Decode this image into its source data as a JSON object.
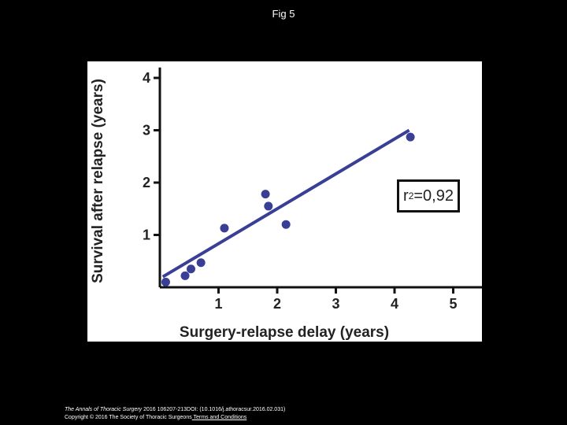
{
  "slide": {
    "title": "Fig 5"
  },
  "chart_data": {
    "type": "scatter",
    "xlabel": "Surgery-relapse delay (years)",
    "ylabel": "Survival after relapse (years)",
    "xlim": [
      0,
      5.5
    ],
    "ylim": [
      0,
      4.2
    ],
    "x_ticks": [
      "1",
      "2",
      "3",
      "4",
      "5"
    ],
    "y_ticks": [
      "1",
      "2",
      "3",
      "4"
    ],
    "points": [
      {
        "x": 0.1,
        "y": 0.1
      },
      {
        "x": 0.43,
        "y": 0.22
      },
      {
        "x": 0.53,
        "y": 0.35
      },
      {
        "x": 0.7,
        "y": 0.47
      },
      {
        "x": 1.1,
        "y": 1.13
      },
      {
        "x": 1.8,
        "y": 1.78
      },
      {
        "x": 1.85,
        "y": 1.55
      },
      {
        "x": 2.15,
        "y": 1.2
      },
      {
        "x": 4.27,
        "y": 2.87
      }
    ],
    "fit_line": {
      "x": [
        0.05,
        4.25
      ],
      "y": [
        0.2,
        3.0
      ]
    },
    "annotation": {
      "r_prefix": "r",
      "exponent": "2",
      "value": "=0,92"
    },
    "grid": false,
    "marker_color": "#3a3f96",
    "line_color": "#3a3f96"
  },
  "citation": {
    "journal": "The Annals of Thoracic Surgery",
    "details": " 2016 106207-213DOI: (10.1016/j.athoracsur.2016.02.031)",
    "copyright": "Copyright © 2016 The Society of Thoracic Surgeons",
    "terms": " Terms and Conditions"
  }
}
